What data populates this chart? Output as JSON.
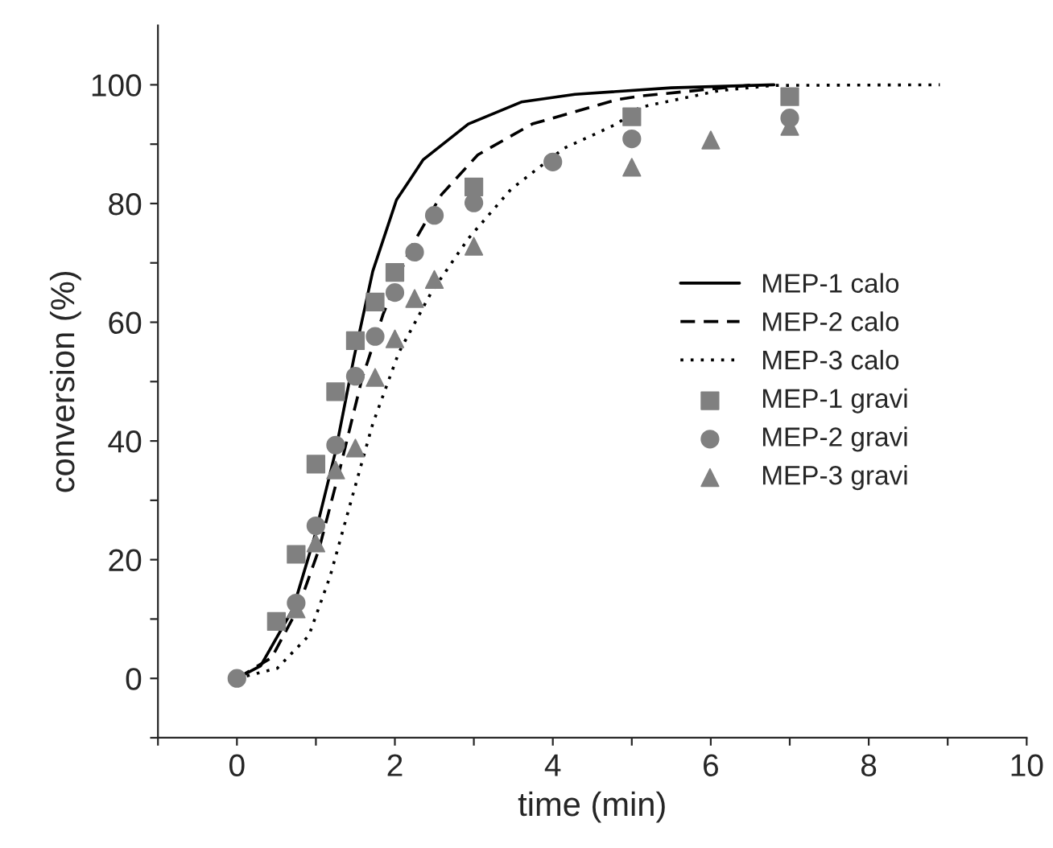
{
  "chart_data": {
    "type": "line",
    "xlabel": "time (min)",
    "ylabel": "conversion (%)",
    "xlim": [
      -1,
      10
    ],
    "ylim": [
      -10,
      110
    ],
    "xticks": [
      {
        "value": -1,
        "label": null
      },
      0,
      {
        "value": 1,
        "label": null
      },
      2,
      {
        "value": 3,
        "label": null
      },
      4,
      {
        "value": 5,
        "label": null
      },
      6,
      {
        "value": 7,
        "label": null
      },
      8,
      {
        "value": 9,
        "label": null
      },
      10
    ],
    "yticks": [
      {
        "value": -10,
        "label": null
      },
      0,
      {
        "value": 10,
        "label": null
      },
      20,
      {
        "value": 30,
        "label": null
      },
      40,
      {
        "value": 50,
        "label": null
      },
      60,
      {
        "value": 70,
        "label": null
      },
      80,
      {
        "value": 90,
        "label": null
      },
      100
    ],
    "grid": false,
    "legend": "center right",
    "series": [
      {
        "name": "MEP-1 calo",
        "line_style": "solid",
        "marker": "none",
        "color": "#000000",
        "x": [
          0,
          0.3,
          0.71,
          0.98,
          1.25,
          1.48,
          1.72,
          2.02,
          2.36,
          2.93,
          3.6,
          4.28,
          5.5,
          6.8
        ],
        "values": [
          0,
          2.1,
          11.7,
          23.7,
          38.3,
          53.9,
          68.6,
          80.6,
          87.4,
          93.4,
          97.1,
          98.4,
          99.5,
          100
        ]
      },
      {
        "name": "MEP-2 calo",
        "line_style": "dashed",
        "marker": "none",
        "color": "#000000",
        "x": [
          0,
          0.44,
          0.77,
          1.04,
          1.31,
          1.58,
          1.85,
          2.19,
          2.59,
          3.05,
          3.74,
          4.81,
          5.1,
          6.55
        ],
        "values": [
          0,
          3.5,
          11.7,
          21.8,
          35.6,
          50.3,
          61.3,
          72.3,
          81.5,
          88.2,
          93.4,
          97.5,
          98.1,
          100
        ]
      },
      {
        "name": "MEP-3 calo",
        "line_style": "dotted",
        "marker": "none",
        "color": "#000000",
        "x": [
          0,
          0.51,
          0.91,
          1.18,
          1.45,
          1.72,
          2.05,
          2.46,
          2.93,
          3.47,
          4.14,
          4.81,
          5.1,
          6.1,
          6.8,
          8.9
        ],
        "values": [
          0,
          1.7,
          7.2,
          17.2,
          30.1,
          42.9,
          54.9,
          65.0,
          74.1,
          82.4,
          89.3,
          93.4,
          96.2,
          99,
          99.9,
          100
        ]
      },
      {
        "name": "MEP-1 gravi",
        "type": "scatter",
        "marker": "square",
        "color": "#808080",
        "x": [
          0.5,
          0.75,
          1,
          1.25,
          1.5,
          1.75,
          2,
          3,
          5,
          7
        ],
        "values": [
          9.6,
          20.9,
          36.1,
          48.3,
          56.9,
          63.4,
          68.4,
          82.8,
          94.6,
          98
        ]
      },
      {
        "name": "MEP-2 gravi",
        "type": "scatter",
        "marker": "circle",
        "color": "#808080",
        "x": [
          0,
          0.75,
          1,
          1.25,
          1.5,
          1.75,
          2,
          2.25,
          2.5,
          3,
          4,
          5,
          7
        ],
        "values": [
          0,
          12.7,
          25.7,
          39.3,
          50.9,
          57.6,
          65.0,
          71.8,
          78.0,
          80.1,
          87.0,
          90.9,
          94.4
        ]
      },
      {
        "name": "MEP-3 gravi",
        "type": "scatter",
        "marker": "triangle",
        "color": "#808080",
        "x": [
          0.75,
          1,
          1.25,
          1.5,
          1.75,
          2,
          2.25,
          2.5,
          3,
          5,
          6,
          7
        ],
        "values": [
          11.7,
          22.8,
          35.1,
          38.8,
          50.7,
          57.2,
          64.0,
          67.2,
          72.8,
          86.1,
          90.7,
          93.0
        ]
      }
    ]
  }
}
